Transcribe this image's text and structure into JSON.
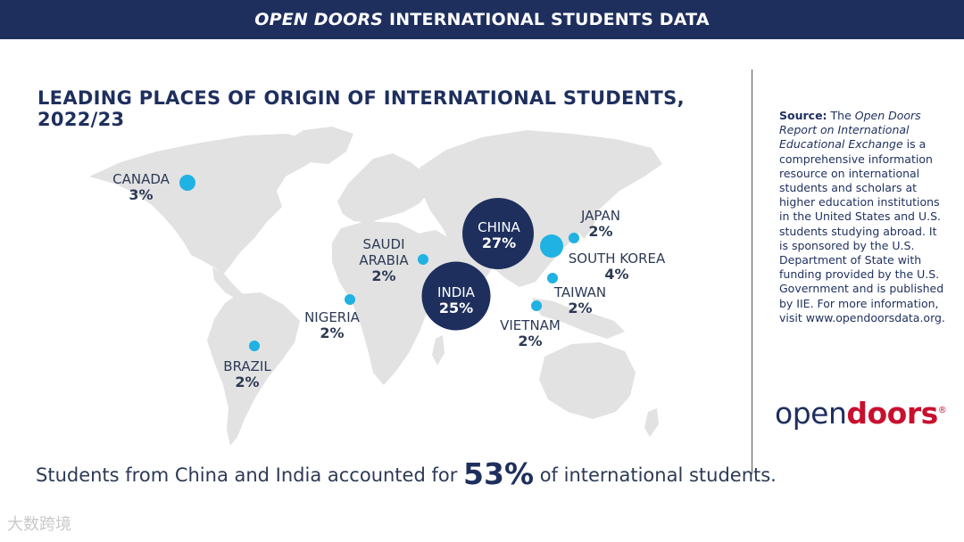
{
  "header": {
    "title_italic": "OPEN DOORS",
    "title_rest": " INTERNATIONAL STUDENTS DATA"
  },
  "chart_data": {
    "type": "bubble-map",
    "title": "LEADING PLACES OF ORIGIN OF INTERNATIONAL STUDENTS, 2022/23",
    "points": [
      {
        "name": "CANADA",
        "value": 3,
        "label": "3%"
      },
      {
        "name": "SAUDI",
        "name2": "ARABIA",
        "value": 2,
        "label": "2%"
      },
      {
        "name": "CHINA",
        "value": 27,
        "label": "27%"
      },
      {
        "name": "INDIA",
        "value": 25,
        "label": "25%"
      },
      {
        "name": "JAPAN",
        "value": 2,
        "label": "2%"
      },
      {
        "name": "SOUTH KOREA",
        "value": 4,
        "label": "4%"
      },
      {
        "name": "TAIWAN",
        "value": 2,
        "label": "2%"
      },
      {
        "name": "VIETNAM",
        "value": 2,
        "label": "2%"
      },
      {
        "name": "NIGERIA",
        "value": 2,
        "label": "2%"
      },
      {
        "name": "BRAZIL",
        "value": 2,
        "label": "2%"
      }
    ],
    "colors": {
      "large": "#1e2f5e",
      "small": "#1fb2e3",
      "land": "#e2e2e2"
    }
  },
  "summary": {
    "before": "Students from China and India accounted for ",
    "highlight": "53%",
    "after": " of international students."
  },
  "source": {
    "lead": "Source:",
    "part1": " The ",
    "italic": "Open Doors Report on International Educational Exchange",
    "part2": " is a comprehensive information resource on international students and scholars at higher education institutions in the United States and U.S. students studying abroad. It is sponsored by the U.S. Department of State with funding provided by the U.S. Government and is published by IIE. For more information, visit www.opendoorsdata.org."
  },
  "logo": {
    "open": "open",
    "doors": "doors",
    "mark": "®"
  },
  "watermark": "大数跨境"
}
